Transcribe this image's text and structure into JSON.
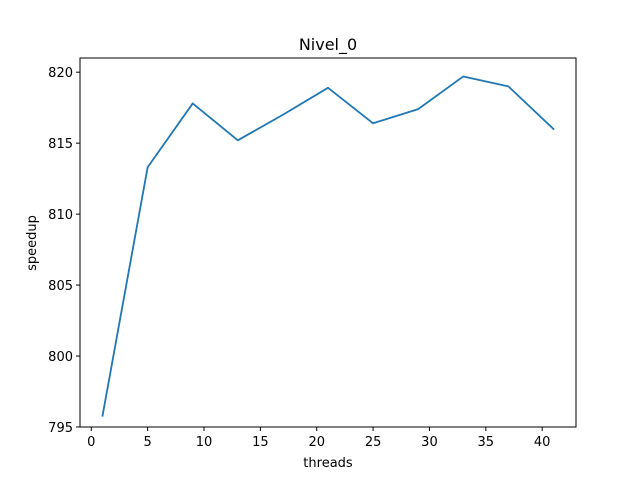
{
  "chart_data": {
    "type": "line",
    "title": "Nivel_0",
    "xlabel": "threads",
    "ylabel": "speedup",
    "xlim": [
      -1,
      43
    ],
    "ylim": [
      795.0,
      821.0
    ],
    "x_ticks": [
      0,
      5,
      10,
      15,
      20,
      25,
      30,
      35,
      40
    ],
    "y_ticks": [
      795,
      800,
      805,
      810,
      815,
      820
    ],
    "x_tick_labels": [
      "0",
      "5",
      "10",
      "15",
      "20",
      "25",
      "30",
      "35",
      "40"
    ],
    "y_tick_labels": [
      "795",
      "800",
      "805",
      "810",
      "815",
      "820"
    ],
    "grid": false,
    "series": [
      {
        "color": "#1f77b4",
        "x": [
          1,
          5,
          9,
          13,
          17,
          21,
          25,
          29,
          33,
          37,
          41
        ],
        "y": [
          795.8,
          813.3,
          817.8,
          815.2,
          817.0,
          818.9,
          816.4,
          817.4,
          819.7,
          819.0,
          816.0
        ]
      }
    ]
  }
}
